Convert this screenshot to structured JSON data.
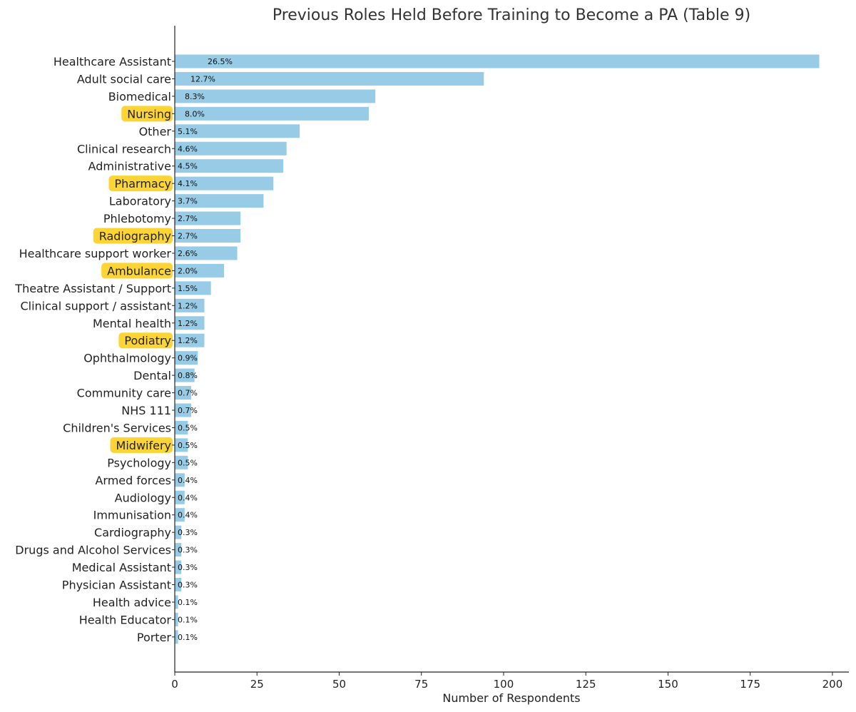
{
  "chart_data": {
    "type": "bar",
    "orientation": "horizontal",
    "title": "Previous Roles Held Before Training to Become a PA (Table 9)",
    "xlabel": "Number of Respondents",
    "ylabel": "",
    "xlim": [
      0,
      205
    ],
    "xticks": [
      0,
      25,
      50,
      75,
      100,
      125,
      150,
      175,
      200
    ],
    "grid": false,
    "bar_color": "#98cbe6",
    "highlight_color": "#fcd534",
    "categories": [
      "Healthcare Assistant",
      "Adult social care",
      "Biomedical",
      "Nursing",
      "Other",
      "Clinical research",
      "Administrative",
      "Pharmacy",
      "Laboratory",
      "Phlebotomy",
      "Radiography",
      "Healthcare support worker",
      "Ambulance",
      "Theatre Assistant / Support",
      "Clinical support / assistant",
      "Mental health",
      "Podiatry",
      "Ophthalmology",
      "Dental",
      "Community care",
      "NHS 111",
      "Children's Services",
      "Midwifery",
      "Psychology",
      "Armed forces",
      "Audiology",
      "Immunisation",
      "Cardiography",
      "Drugs and Alcohol Services",
      "Medical Assistant",
      "Physician Assistant",
      "Health advice",
      "Health Educator",
      "Porter"
    ],
    "values": [
      196,
      94,
      61,
      59,
      38,
      34,
      33,
      30,
      27,
      20,
      20,
      19,
      15,
      11,
      9,
      9,
      9,
      7,
      6,
      5,
      5,
      4,
      4,
      4,
      3,
      3,
      3,
      2,
      2,
      2,
      2,
      1,
      1,
      1
    ],
    "data_labels": [
      "26.5%",
      "12.7%",
      "8.3%",
      "8.0%",
      "5.1%",
      "4.6%",
      "4.5%",
      "4.1%",
      "3.7%",
      "2.7%",
      "2.7%",
      "2.6%",
      "2.0%",
      "1.5%",
      "1.2%",
      "1.2%",
      "1.2%",
      "0.9%",
      "0.8%",
      "0.7%",
      "0.7%",
      "0.5%",
      "0.5%",
      "0.5%",
      "0.4%",
      "0.4%",
      "0.4%",
      "0.3%",
      "0.3%",
      "0.3%",
      "0.3%",
      "0.1%",
      "0.1%",
      "0.1%"
    ],
    "highlighted": [
      "Nursing",
      "Pharmacy",
      "Radiography",
      "Ambulance",
      "Podiatry",
      "Midwifery"
    ]
  }
}
